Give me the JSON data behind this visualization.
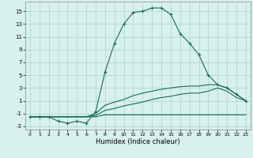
{
  "xlabel": "Humidex (Indice chaleur)",
  "x": [
    0,
    1,
    2,
    3,
    4,
    5,
    6,
    7,
    8,
    9,
    10,
    11,
    12,
    13,
    14,
    15,
    16,
    17,
    18,
    19,
    20,
    21,
    22,
    23
  ],
  "line_main": [
    -1.5,
    -1.5,
    -1.5,
    -2.2,
    -2.5,
    -2.2,
    -2.5,
    -0.7,
    5.5,
    10.0,
    13.0,
    14.8,
    15.0,
    15.5,
    15.5,
    14.5,
    11.5,
    10.0,
    8.2,
    5.0,
    3.5,
    3.0,
    2.0,
    1.0
  ],
  "line_upper": [
    -1.5,
    -1.5,
    -1.5,
    -1.5,
    -1.5,
    -1.5,
    -1.5,
    -1.0,
    0.3,
    0.8,
    1.2,
    1.8,
    2.2,
    2.5,
    2.8,
    3.0,
    3.2,
    3.3,
    3.3,
    3.5,
    3.5,
    3.0,
    2.0,
    1.0
  ],
  "line_lower": [
    -1.5,
    -1.5,
    -1.5,
    -1.5,
    -1.5,
    -1.5,
    -1.5,
    -1.3,
    -0.5,
    -0.2,
    0.2,
    0.5,
    0.8,
    1.2,
    1.5,
    1.7,
    2.0,
    2.2,
    2.2,
    2.5,
    3.0,
    2.5,
    1.5,
    1.0
  ],
  "line_flat": [
    -1.5,
    -1.5,
    -1.5,
    -1.5,
    -1.5,
    -1.5,
    -1.5,
    -1.5,
    -1.2,
    -1.2,
    -1.2,
    -1.2,
    -1.2,
    -1.2,
    -1.2,
    -1.2,
    -1.2,
    -1.2,
    -1.2,
    -1.2,
    -1.2,
    -1.2,
    -1.2,
    -1.2
  ],
  "line_color": "#1a6b5a",
  "bg_color": "#d8f0ee",
  "grid_color": "#b0d8d4",
  "ylim": [
    -3.5,
    16.5
  ],
  "xlim": [
    -0.5,
    23.5
  ],
  "yticks": [
    -3,
    -1,
    1,
    3,
    5,
    7,
    9,
    11,
    13,
    15
  ],
  "xticks": [
    0,
    1,
    2,
    3,
    4,
    5,
    6,
    7,
    8,
    9,
    10,
    11,
    12,
    13,
    14,
    15,
    16,
    17,
    18,
    19,
    20,
    21,
    22,
    23
  ]
}
